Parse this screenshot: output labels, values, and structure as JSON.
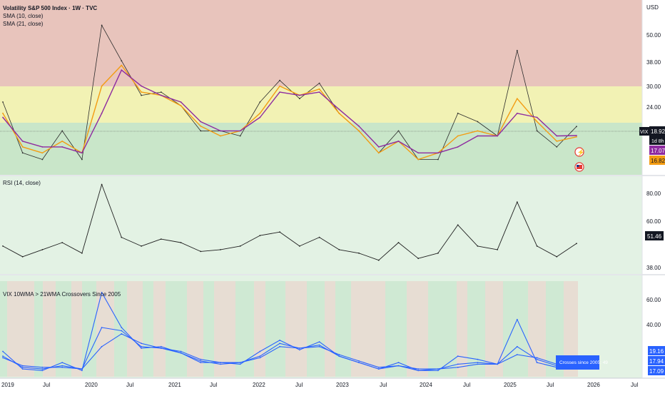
{
  "colors": {
    "zone_red": "#e8c4bc",
    "zone_yellow": "#f2f2b4",
    "zone_green": "#c9e6c9",
    "panel_bg": "#e3f2e4",
    "sma10": "#f39c12",
    "sma21": "#8e2ba0",
    "price_line": "#2b2b2b",
    "rsi_line": "#1f1f1f",
    "blue": "#2962ff",
    "band_red": "#e7ddd3",
    "band_green": "#cfe9d3"
  },
  "header": {
    "title": "Volatility S&P 500 Index · 1W · TVC",
    "sma10_label": "SMA (10, close)",
    "sma21_label": "SMA (21, close)",
    "currency": "USD"
  },
  "price_panel": {
    "ticker_badge": "VIX",
    "last_value": "18.92",
    "countdown": "1d 8h",
    "sma21_value": "17.07",
    "sma10_value": "16.82",
    "ticks": [
      "50.00",
      "38.00",
      "30.00",
      "24.00"
    ]
  },
  "rsi_panel": {
    "label": "RSI (14, close)",
    "value": "51.46",
    "ticks": [
      "80.00",
      "60.00",
      "38.00"
    ]
  },
  "vix_panel": {
    "label": "VIX 10WMA > 21WMA Crossovers Since 2005",
    "ticks": [
      "60.00",
      "40.00"
    ],
    "values": [
      "19.16",
      "17.94",
      "17.09"
    ],
    "badge": "Crosses since 2005: 49"
  },
  "time_axis": [
    "2019",
    "Jul",
    "2020",
    "Jul",
    "2021",
    "Jul",
    "2022",
    "Jul",
    "2023",
    "Jul",
    "2024",
    "Jul",
    "2025",
    "Jul",
    "2026",
    "Jul"
  ],
  "chart_data": [
    {
      "type": "line",
      "title": "Volatility S&P 500 Index · 1W · TVC",
      "x": [
        "2019-01",
        "2019-04",
        "2019-07",
        "2019-10",
        "2020-01",
        "2020-03",
        "2020-04",
        "2020-07",
        "2020-10",
        "2021-01",
        "2021-04",
        "2021-07",
        "2021-10",
        "2022-01",
        "2022-03",
        "2022-07",
        "2022-10",
        "2023-01",
        "2023-04",
        "2023-07",
        "2023-10",
        "2024-01",
        "2024-04",
        "2024-08",
        "2024-10",
        "2025-01",
        "2025-04",
        "2025-06",
        "2025-08",
        "2025-10"
      ],
      "series": [
        {
          "name": "VIX",
          "values": [
            25,
            14,
            13,
            18,
            13,
            60,
            40,
            27,
            28,
            24,
            18,
            18,
            17,
            25,
            32,
            26,
            31,
            22,
            18,
            14,
            18,
            13,
            13,
            22,
            20,
            17,
            45,
            18,
            15,
            18.92
          ]
        },
        {
          "name": "SMA (10, close)",
          "values": [
            22,
            15,
            14,
            16,
            14,
            30,
            38,
            28,
            27,
            24,
            19,
            17,
            18,
            22,
            30,
            27,
            29,
            22,
            18,
            14,
            16,
            13,
            14,
            17,
            18,
            17,
            26,
            20,
            16,
            16.82
          ]
        },
        {
          "name": "SMA (21, close)",
          "values": [
            21,
            16,
            15,
            15,
            14,
            22,
            36,
            30,
            27,
            25,
            20,
            18,
            18,
            21,
            28,
            27,
            28,
            23,
            19,
            15,
            16,
            14,
            14,
            15,
            17,
            17,
            22,
            21,
            17,
            17.07
          ]
        }
      ],
      "ylim": [
        11,
        80
      ],
      "ylabel": "USD",
      "zones": [
        {
          "from": 30,
          "to": 80,
          "color": "#e8c4bc"
        },
        {
          "from": 20,
          "to": 30,
          "color": "#f2f2b4"
        },
        {
          "from": 11,
          "to": 20,
          "color": "#c9e6c9"
        }
      ]
    },
    {
      "type": "line",
      "title": "RSI (14, close)",
      "x": [
        "2019-01",
        "2019-04",
        "2019-07",
        "2019-10",
        "2020-01",
        "2020-03",
        "2020-04",
        "2020-07",
        "2020-10",
        "2021-01",
        "2021-04",
        "2021-07",
        "2021-10",
        "2022-01",
        "2022-03",
        "2022-07",
        "2022-10",
        "2023-01",
        "2023-04",
        "2023-07",
        "2023-10",
        "2024-01",
        "2024-04",
        "2024-08",
        "2024-10",
        "2025-01",
        "2025-04",
        "2025-06",
        "2025-08",
        "2025-10"
      ],
      "series": [
        {
          "name": "RSI",
          "values": [
            50,
            44,
            48,
            52,
            46,
            85,
            55,
            50,
            54,
            52,
            47,
            48,
            50,
            56,
            58,
            50,
            55,
            48,
            46,
            42,
            52,
            43,
            46,
            62,
            50,
            48,
            75,
            50,
            44,
            51.46
          ]
        }
      ],
      "ylim": [
        35,
        86
      ]
    },
    {
      "type": "line",
      "title": "VIX 10WMA > 21WMA Crossovers Since 2005",
      "x": [
        "2019-01",
        "2019-04",
        "2019-07",
        "2019-10",
        "2020-01",
        "2020-03",
        "2020-04",
        "2020-07",
        "2020-10",
        "2021-01",
        "2021-04",
        "2021-07",
        "2021-10",
        "2022-01",
        "2022-03",
        "2022-07",
        "2022-10",
        "2023-01",
        "2023-04",
        "2023-07",
        "2023-10",
        "2024-01",
        "2024-04",
        "2024-08",
        "2024-10",
        "2025-01",
        "2025-04",
        "2025-06",
        "2025-08",
        "2025-10"
      ],
      "series": [
        {
          "values": [
            25,
            14,
            13,
            18,
            13,
            62,
            40,
            27,
            28,
            24,
            18,
            18,
            17,
            25,
            32,
            26,
            31,
            22,
            18,
            14,
            18,
            13,
            13,
            22,
            20,
            17,
            45,
            18,
            15,
            19.16
          ]
        },
        {
          "values": [
            22,
            15,
            14,
            16,
            14,
            40,
            38,
            28,
            27,
            24,
            19,
            17,
            18,
            22,
            30,
            27,
            29,
            22,
            18,
            14,
            16,
            13,
            14,
            17,
            18,
            17,
            28,
            20,
            16,
            17.94
          ]
        },
        {
          "values": [
            21,
            16,
            15,
            15,
            14,
            28,
            36,
            30,
            27,
            25,
            20,
            18,
            18,
            21,
            28,
            27,
            28,
            23,
            19,
            15,
            16,
            14,
            14,
            15,
            17,
            17,
            23,
            21,
            17,
            17.09
          ]
        }
      ],
      "ylim": [
        10,
        70
      ]
    }
  ]
}
